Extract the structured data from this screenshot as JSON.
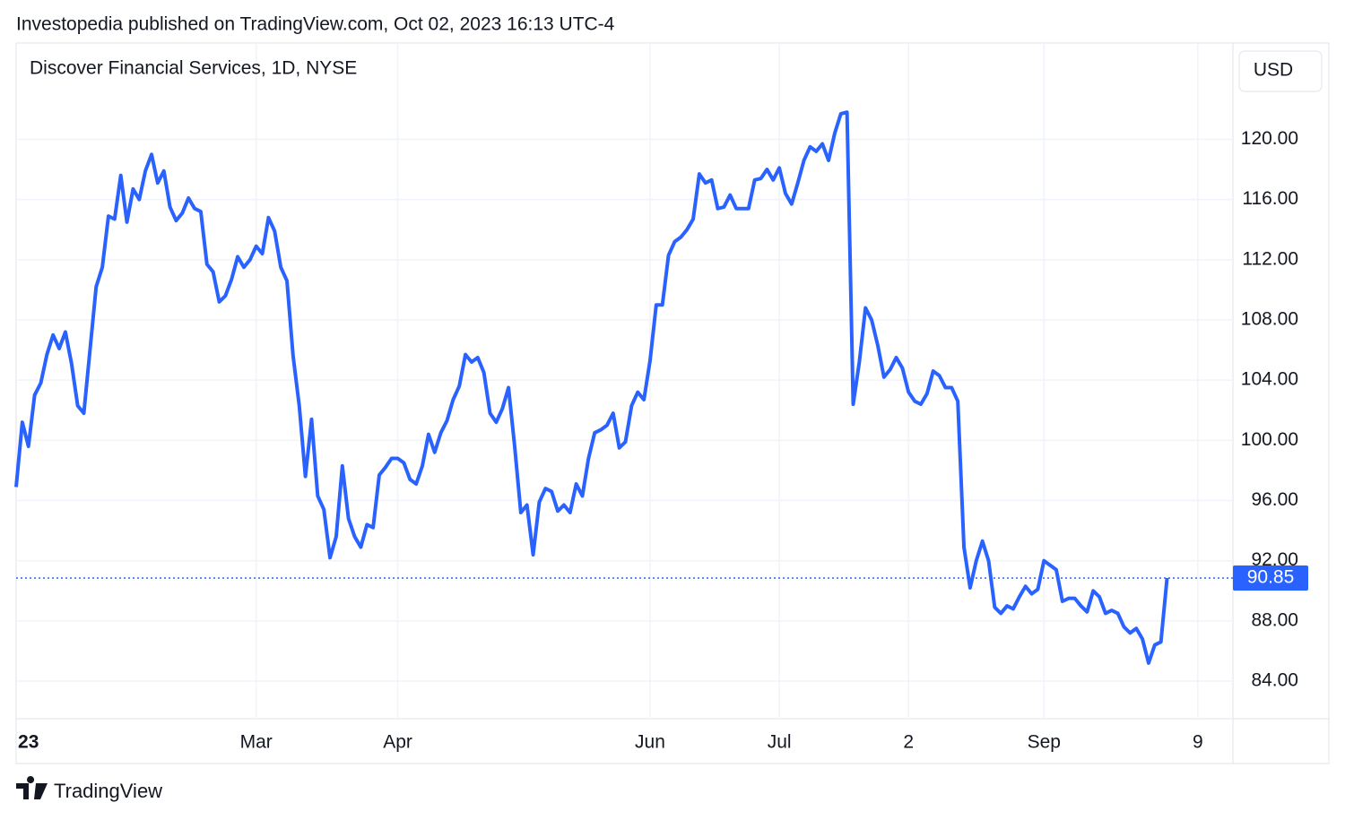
{
  "header": "Investopedia published on TradingView.com, Oct 02, 2023 16:13 UTC-4",
  "footer": "TradingView",
  "chart_data": {
    "type": "line",
    "title": "Discover Financial Services, 1D, NYSE",
    "currency": "USD",
    "series": [
      {
        "color": "#2962ff",
        "values": [
          96.9,
          101.2,
          99.6,
          103.0,
          103.8,
          105.7,
          107.0,
          106.1,
          107.2,
          105.1,
          102.3,
          101.8,
          106.0,
          110.2,
          111.5,
          114.9,
          114.7,
          117.6,
          114.5,
          116.7,
          116.0,
          117.9,
          119.0,
          117.1,
          117.9,
          115.5,
          114.6,
          115.1,
          116.1,
          115.4,
          115.2,
          111.7,
          111.2,
          109.2,
          109.6,
          110.7,
          112.2,
          111.5,
          112.0,
          112.9,
          112.4,
          114.8,
          113.9,
          111.5,
          110.6,
          105.6,
          102.3,
          97.6,
          101.4,
          96.3,
          95.4,
          92.2,
          93.6,
          98.3,
          94.8,
          93.6,
          92.9,
          94.4,
          94.2,
          97.7,
          98.2,
          98.8,
          98.8,
          98.5,
          97.4,
          97.1,
          98.3,
          100.4,
          99.2,
          100.5,
          101.3,
          102.7,
          103.6,
          105.7,
          105.2,
          105.5,
          104.5,
          101.8,
          101.2,
          102.1,
          103.5,
          99.6,
          95.2,
          95.7,
          92.4,
          95.9,
          96.8,
          96.6,
          95.3,
          95.7,
          95.2,
          97.1,
          96.3,
          98.8,
          100.5,
          100.7,
          101.0,
          101.8,
          99.5,
          99.9,
          102.3,
          103.2,
          102.7,
          105.3,
          109.0,
          109.0,
          112.3,
          113.2,
          113.5,
          114.0,
          114.7,
          117.7,
          117.1,
          117.3,
          115.4,
          115.5,
          116.3,
          115.4,
          115.4,
          115.4,
          117.3,
          117.4,
          118.0,
          117.3,
          118.1,
          116.4,
          115.7,
          117.1,
          118.6,
          119.5,
          119.2,
          119.7,
          118.6,
          120.4,
          121.7,
          121.8,
          102.4,
          105.2,
          108.8,
          108.0,
          106.3,
          104.2,
          104.7,
          105.5,
          104.8,
          103.2,
          102.6,
          102.4,
          103.1,
          104.6,
          104.3,
          103.5,
          103.5,
          102.6,
          92.9,
          90.2,
          92.0,
          93.3,
          92.0,
          88.9,
          88.5,
          89.0,
          88.8,
          89.6,
          90.3,
          89.8,
          90.1,
          92.0,
          91.7,
          91.4,
          89.3,
          89.5,
          89.5,
          89.0,
          88.6,
          90.0,
          89.6,
          88.5,
          88.7,
          88.5,
          87.6,
          87.2,
          87.5,
          86.8,
          85.2,
          86.4,
          86.6,
          90.85
        ]
      }
    ],
    "last_value_label": "90.85",
    "xlim": [
      0,
      197.7
    ],
    "xticks": [
      {
        "value": 2,
        "label": "23"
      },
      {
        "value": 39,
        "label": "Mar"
      },
      {
        "value": 62,
        "label": "Apr"
      },
      {
        "value": 103,
        "label": "Jun"
      },
      {
        "value": 124,
        "label": "Jul"
      },
      {
        "value": 145,
        "label": "2"
      },
      {
        "value": 167,
        "label": "Sep"
      },
      {
        "value": 192,
        "label": "9"
      }
    ],
    "ylim": [
      81.5,
      126.4
    ],
    "yticks": [
      {
        "value": 84,
        "label": "84.00"
      },
      {
        "value": 88,
        "label": "88.00"
      },
      {
        "value": 92,
        "label": "92.00"
      },
      {
        "value": 96,
        "label": "96.00"
      },
      {
        "value": 100,
        "label": "100.00"
      },
      {
        "value": 104,
        "label": "104.00"
      },
      {
        "value": 108,
        "label": "108.00"
      },
      {
        "value": 112,
        "label": "112.00"
      },
      {
        "value": 116,
        "label": "116.00"
      },
      {
        "value": 120,
        "label": "120.00"
      }
    ],
    "grid": true
  }
}
